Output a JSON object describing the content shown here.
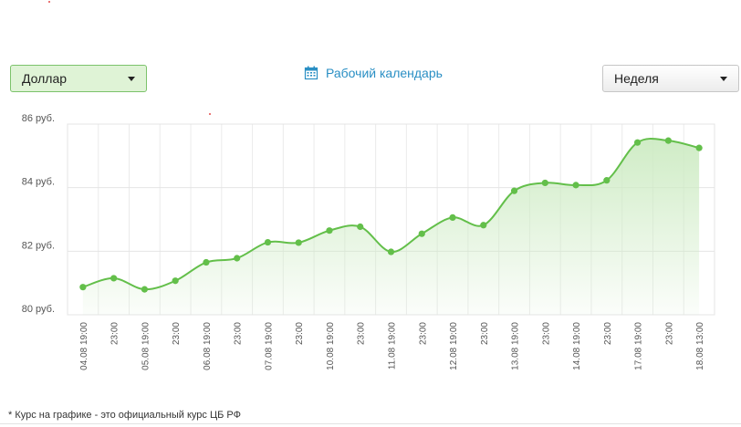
{
  "controls": {
    "currency": "Доллар",
    "calendar_link": "Рабочий календарь",
    "period": "Неделя"
  },
  "icons": {
    "calendar": "calendar-icon",
    "dropdown": "chevron-down-icon"
  },
  "colors": {
    "line": "#63bf4a",
    "point": "#63bf4a",
    "fill_top": "#cdebc3",
    "link": "#2a8fc4"
  },
  "footnote": "* Курс на графике - это официальный курс ЦБ РФ",
  "chart_data": {
    "type": "area",
    "x": [
      "04.08 19:00",
      "23:00",
      "05.08 19:00",
      "23:00",
      "06.08 19:00",
      "23:00",
      "07.08 19:00",
      "23:00",
      "10.08 19:00",
      "23:00",
      "11.08 19:00",
      "23:00",
      "12.08 19:00",
      "23:00",
      "13.08 19:00",
      "23:00",
      "14.08 19:00",
      "23:00",
      "17.08 19:00",
      "23:00",
      "18.08 13:00"
    ],
    "series": [
      {
        "values": [
          80.87,
          81.15,
          80.8,
          81.07,
          81.65,
          81.78,
          82.28,
          82.27,
          82.65,
          82.77,
          81.98,
          82.55,
          83.06,
          82.82,
          83.9,
          84.15,
          84.08,
          84.23,
          85.42,
          85.48,
          85.25
        ]
      }
    ],
    "yticks": [
      "86 руб.",
      "84 руб.",
      "82 руб.",
      "80 руб."
    ],
    "ytick_values": [
      86,
      84,
      82,
      80
    ],
    "ylim": [
      80,
      86
    ],
    "grid": true
  }
}
